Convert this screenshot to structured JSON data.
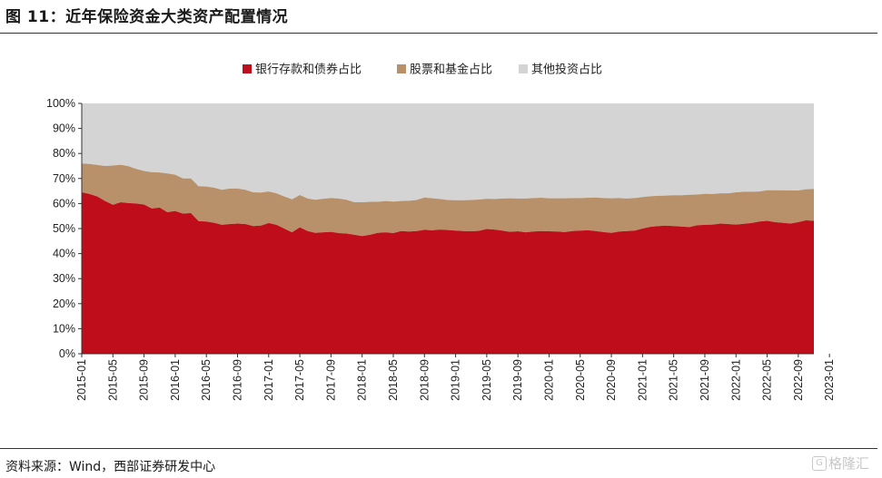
{
  "header": {
    "title": "图 11：近年保险资金大类资产配置情况"
  },
  "footer": {
    "source": "资料来源：Wind，西部证券研发中心",
    "watermark_text": "格隆汇",
    "watermark_icon": "gelonghui-logo-icon"
  },
  "chart_data": {
    "type": "area",
    "stacked": true,
    "percent": true,
    "title": "",
    "xlabel": "",
    "ylabel": "",
    "ylim": [
      0,
      100
    ],
    "y_ticks": [
      "0%",
      "10%",
      "20%",
      "30%",
      "40%",
      "50%",
      "60%",
      "70%",
      "80%",
      "90%",
      "100%"
    ],
    "x_tick_labels": [
      "2015-01",
      "2015-05",
      "2015-09",
      "2016-01",
      "2016-05",
      "2016-09",
      "2017-01",
      "2017-05",
      "2017-09",
      "2018-01",
      "2018-05",
      "2018-09",
      "2019-01",
      "2019-05",
      "2019-09",
      "2020-01",
      "2020-05",
      "2020-09",
      "2021-01",
      "2021-05",
      "2021-09",
      "2022-01",
      "2022-05",
      "2022-09",
      "2023-01"
    ],
    "x_start": "2015-01",
    "x_end": "2023-03",
    "grid": false,
    "legend_position": "top",
    "colors": {
      "bank_bond": "#c00d1c",
      "stock_fund": "#b8916a",
      "other": "#d4d4d4"
    },
    "series": [
      {
        "key": "bank_bond",
        "name": "银行存款和债券占比",
        "values": [
          64.5,
          63.8,
          62.8,
          61,
          59.5,
          60.5,
          60.2,
          60,
          59.6,
          58,
          58.4,
          56.5,
          57,
          56,
          56.2,
          53,
          52.8,
          52.3,
          51.5,
          51.8,
          52,
          51.8,
          51,
          51.2,
          52.2,
          51.5,
          50,
          48.5,
          50.5,
          49,
          48.3,
          48.5,
          48.7,
          48.2,
          48,
          47.5,
          47,
          47.5,
          48.3,
          48.5,
          48.2,
          49,
          48.8,
          49,
          49.5,
          49.3,
          49.6,
          49.4,
          49.2,
          49,
          48.9,
          49.1,
          49.8,
          49.6,
          49.2,
          48.7,
          48.9,
          48.5,
          48.8,
          49,
          48.9,
          48.8,
          48.6,
          49,
          49.2,
          49.3,
          49,
          48.6,
          48.3,
          48.8,
          49,
          49.2,
          50,
          50.7,
          51,
          51.2,
          51,
          50.8,
          50.6,
          51.3,
          51.5,
          51.6,
          52,
          51.8,
          51.6,
          51.9,
          52.2,
          52.8,
          53.1,
          52.6,
          52.3,
          52,
          52.6,
          53.3,
          53.1
        ],
        "levels": null
      },
      {
        "key": "stock_fund",
        "name": "股票和基金占比",
        "values": [
          11.5,
          12,
          12.6,
          14,
          15.7,
          15,
          14.7,
          13.8,
          13.4,
          14.5,
          14,
          15.5,
          14.5,
          14,
          13.8,
          13.9,
          14,
          14,
          14,
          14.2,
          14,
          13.7,
          13.5,
          13.2,
          12.6,
          12.6,
          12.8,
          13.2,
          12.9,
          13,
          13.2,
          13.4,
          13.5,
          13.8,
          13.5,
          13,
          13.5,
          13.2,
          12.4,
          12.5,
          12.6,
          12,
          12.3,
          12.4,
          12.9,
          12.8,
          12.2,
          12,
          12.1,
          12.3,
          12.5,
          12.5,
          12.1,
          12.2,
          12.8,
          13.4,
          13.1,
          13.5,
          13.4,
          13.3,
          13.2,
          13.3,
          13.5,
          13.2,
          13,
          13,
          13.4,
          13.6,
          13.8,
          13.4,
          13,
          13,
          12.6,
          12.2,
          12.1,
          12,
          12.3,
          12.5,
          12.9,
          12.3,
          12.4,
          12.2,
          12.1,
          12.3,
          12.9,
          12.8,
          12.5,
          12,
          12.2,
          12.7,
          13,
          13.2,
          12.6,
          12.4,
          12.7
        ]
      },
      {
        "key": "other",
        "name": "其他投资占比",
        "values": "remainder_to_100"
      }
    ]
  }
}
